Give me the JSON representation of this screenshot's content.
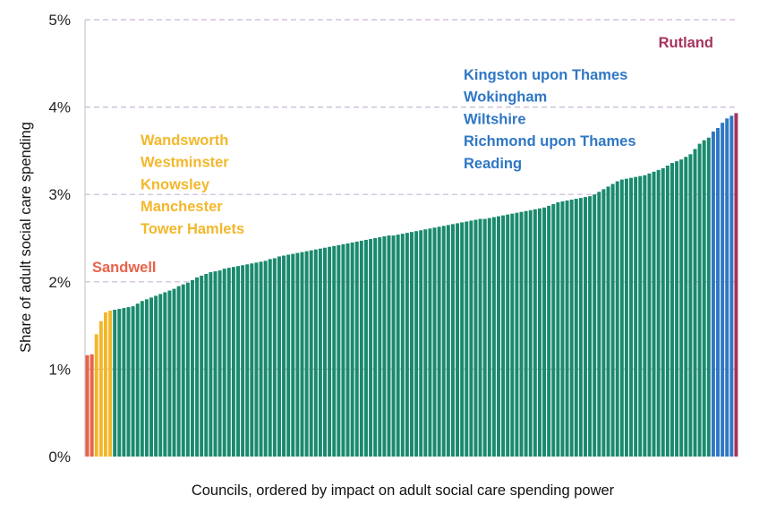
{
  "chart_data": {
    "type": "bar",
    "xlabel": "Councils, ordered by impact on adult social care spending power",
    "ylabel": "Share of adult social care spending",
    "ylim": [
      0,
      0.05
    ],
    "yticks": [
      {
        "value": 0,
        "label": "0%"
      },
      {
        "value": 0.01,
        "label": "1%"
      },
      {
        "value": 0.02,
        "label": "2%"
      },
      {
        "value": 0.03,
        "label": "3%"
      },
      {
        "value": 0.04,
        "label": "4%"
      },
      {
        "value": 0.05,
        "label": "5%"
      }
    ],
    "grid": "horizontal dashed",
    "colors": {
      "red": "#e8634a",
      "yellow": "#f3b72b",
      "green": "#1a8a6e",
      "blue": "#2f77c4",
      "purple": "#a6335e",
      "grid": "#c9b8d2",
      "axis": "#bfbfbf"
    },
    "groups": [
      {
        "color": "red",
        "labels": [
          "Sandwell"
        ]
      },
      {
        "color": "yellow",
        "labels": [
          "Wandsworth",
          "Westminster",
          "Knowsley",
          "Manchester",
          "Tower Hamlets"
        ]
      },
      {
        "color": "blue",
        "labels": [
          "Kingston upon Thames",
          "Wokingham",
          "Wiltshire",
          "Richmond upon Thames",
          "Reading"
        ]
      },
      {
        "color": "purple",
        "labels": [
          "Rutland"
        ]
      }
    ],
    "series": [
      {
        "values": [
          0.0116,
          0.0117,
          0.014,
          0.0155,
          0.0165,
          0.0167,
          0.0168,
          0.0169,
          0.017,
          0.0171,
          0.0172,
          0.0175,
          0.0178,
          0.018,
          0.0182,
          0.0184,
          0.0186,
          0.0188,
          0.019,
          0.0192,
          0.0195,
          0.0197,
          0.0199,
          0.0202,
          0.0205,
          0.0207,
          0.0209,
          0.0211,
          0.0212,
          0.0213,
          0.0215,
          0.0216,
          0.0217,
          0.0218,
          0.0219,
          0.022,
          0.0221,
          0.0222,
          0.0223,
          0.0224,
          0.0226,
          0.0227,
          0.0229,
          0.023,
          0.0231,
          0.0232,
          0.0233,
          0.0234,
          0.0235,
          0.0236,
          0.0237,
          0.0238,
          0.0239,
          0.024,
          0.0241,
          0.0242,
          0.0243,
          0.0244,
          0.0245,
          0.0246,
          0.0247,
          0.0248,
          0.0249,
          0.025,
          0.0251,
          0.0252,
          0.0253,
          0.0253,
          0.0254,
          0.0255,
          0.0256,
          0.0257,
          0.0258,
          0.0259,
          0.026,
          0.0261,
          0.0262,
          0.0263,
          0.0264,
          0.0265,
          0.0266,
          0.0267,
          0.0268,
          0.0269,
          0.027,
          0.0271,
          0.0272,
          0.0272,
          0.0273,
          0.0274,
          0.0275,
          0.0276,
          0.0277,
          0.0278,
          0.0279,
          0.028,
          0.0281,
          0.0282,
          0.0283,
          0.0284,
          0.0285,
          0.0287,
          0.0289,
          0.0291,
          0.0292,
          0.0293,
          0.0294,
          0.0295,
          0.0296,
          0.0297,
          0.0298,
          0.03,
          0.0303,
          0.0306,
          0.0309,
          0.0312,
          0.0315,
          0.0317,
          0.0318,
          0.0319,
          0.032,
          0.0321,
          0.0322,
          0.0324,
          0.0326,
          0.0328,
          0.033,
          0.0333,
          0.0336,
          0.0338,
          0.034,
          0.0343,
          0.0346,
          0.0352,
          0.0358,
          0.0362,
          0.0365,
          0.0372,
          0.0376,
          0.0382,
          0.0387,
          0.039,
          0.0393
        ],
        "colors": [
          "red",
          "red",
          "yellow",
          "yellow",
          "yellow",
          "yellow",
          "green",
          "green",
          "green",
          "green",
          "green",
          "green",
          "green",
          "green",
          "green",
          "green",
          "green",
          "green",
          "green",
          "green",
          "green",
          "green",
          "green",
          "green",
          "green",
          "green",
          "green",
          "green",
          "green",
          "green",
          "green",
          "green",
          "green",
          "green",
          "green",
          "green",
          "green",
          "green",
          "green",
          "green",
          "green",
          "green",
          "green",
          "green",
          "green",
          "green",
          "green",
          "green",
          "green",
          "green",
          "green",
          "green",
          "green",
          "green",
          "green",
          "green",
          "green",
          "green",
          "green",
          "green",
          "green",
          "green",
          "green",
          "green",
          "green",
          "green",
          "green",
          "green",
          "green",
          "green",
          "green",
          "green",
          "green",
          "green",
          "green",
          "green",
          "green",
          "green",
          "green",
          "green",
          "green",
          "green",
          "green",
          "green",
          "green",
          "green",
          "green",
          "green",
          "green",
          "green",
          "green",
          "green",
          "green",
          "green",
          "green",
          "green",
          "green",
          "green",
          "green",
          "green",
          "green",
          "green",
          "green",
          "green",
          "green",
          "green",
          "green",
          "green",
          "green",
          "green",
          "green",
          "green",
          "green",
          "green",
          "green",
          "green",
          "green",
          "green",
          "green",
          "green",
          "green",
          "green",
          "green",
          "green",
          "green",
          "green",
          "green",
          "green",
          "green",
          "green",
          "green",
          "green",
          "green",
          "green",
          "green",
          "green",
          "green",
          "blue",
          "blue",
          "blue",
          "blue",
          "blue",
          "purple"
        ]
      }
    ]
  }
}
